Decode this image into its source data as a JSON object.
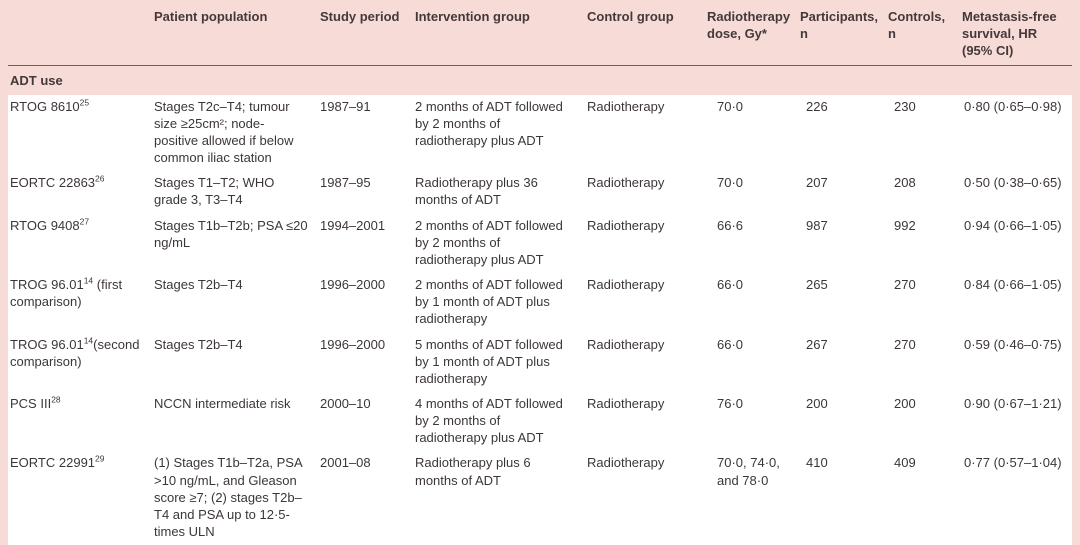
{
  "colors": {
    "page_background": "#f6dbd7",
    "row_background": "#ffffff",
    "text": "#3d3638",
    "header_rule": "#6e5f5c"
  },
  "table": {
    "columns": [
      "",
      "Patient population",
      "Study period",
      "Intervention group",
      "Control group",
      "Radiotherapy dose, Gy*",
      "Participants, n",
      "Controls, n",
      "Metastasis-free survival, HR (95% CI)"
    ],
    "section_label": "ADT use",
    "rows": [
      {
        "study": "RTOG 8610",
        "ref": "25",
        "suffix": "",
        "population": "Stages T2c–T4; tumour size ≥25cm²; node-positive allowed if below common iliac station",
        "period": "1987–91",
        "intervention": "2 months of ADT followed by 2 months of radiotherapy plus ADT",
        "control": "Radiotherapy",
        "dose": "70·0",
        "participants": "226",
        "controls": "230",
        "hr": "0·80 (0·65–0·98)"
      },
      {
        "study": "EORTC 22863",
        "ref": "26",
        "suffix": "",
        "population": "Stages T1–T2; WHO grade 3, T3–T4",
        "period": "1987–95",
        "intervention": "Radiotherapy plus 36 months of ADT",
        "control": "Radiotherapy",
        "dose": "70·0",
        "participants": "207",
        "controls": "208",
        "hr": "0·50 (0·38–0·65)"
      },
      {
        "study": "RTOG 9408",
        "ref": "27",
        "suffix": "",
        "population": "Stages T1b–T2b; PSA ≤20 ng/mL",
        "period": "1994–2001",
        "intervention": "2 months of ADT followed by 2 months of radiotherapy plus ADT",
        "control": "Radiotherapy",
        "dose": "66·6",
        "participants": "987",
        "controls": "992",
        "hr": "0·94 (0·66–1·05)"
      },
      {
        "study": "TROG 96.01",
        "ref": "14",
        "suffix": " (first comparison)",
        "population": "Stages T2b–T4",
        "period": "1996–2000",
        "intervention": "2 months of ADT followed by 1 month of ADT plus radiotherapy",
        "control": "Radiotherapy",
        "dose": "66·0",
        "participants": "265",
        "controls": "270",
        "hr": "0·84 (0·66–1·05)"
      },
      {
        "study": "TROG 96.01",
        "ref": "14",
        "suffix": "(second comparison)",
        "population": "Stages T2b–T4",
        "period": "1996–2000",
        "intervention": "5 months of ADT followed by 1 month of ADT plus radiotherapy",
        "control": "Radiotherapy",
        "dose": "66·0",
        "participants": "267",
        "controls": "270",
        "hr": "0·59 (0·46–0·75)"
      },
      {
        "study": "PCS III",
        "ref": "28",
        "suffix": "",
        "population": "NCCN intermediate risk",
        "period": "2000–10",
        "intervention": "4 months of ADT followed by 2 months of radiotherapy plus ADT",
        "control": "Radiotherapy",
        "dose": "76·0",
        "participants": "200",
        "controls": "200",
        "hr": "0·90 (0·67–1·21)"
      },
      {
        "study": "EORTC 22991",
        "ref": "29",
        "suffix": "",
        "population": "(1) Stages T1b–T2a, PSA >10 ng/mL, and Gleason score ≥7; (2) stages T2b–T4 and PSA up to 12·5-times ULN",
        "period": "2001–08",
        "intervention": "Radiotherapy plus 6 months of ADT",
        "control": "Radiotherapy",
        "dose": "70·0, 74·0, and 78·0",
        "participants": "410",
        "controls": "409",
        "hr": "0·77 (0·57–1·04)"
      }
    ]
  }
}
